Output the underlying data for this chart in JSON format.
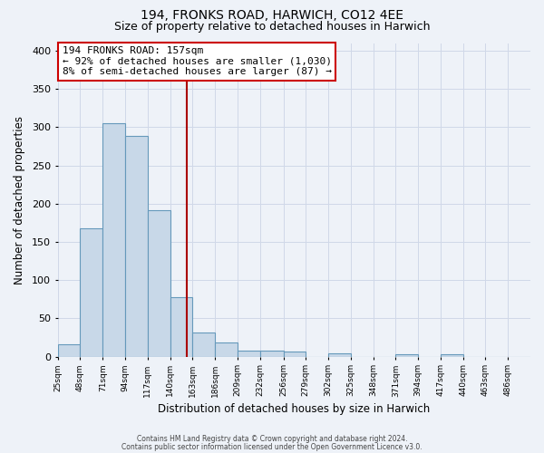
{
  "title": "194, FRONKS ROAD, HARWICH, CO12 4EE",
  "subtitle": "Size of property relative to detached houses in Harwich",
  "xlabel": "Distribution of detached houses by size in Harwich",
  "ylabel": "Number of detached properties",
  "bar_values": [
    16,
    168,
    305,
    288,
    191,
    78,
    32,
    19,
    8,
    8,
    6,
    0,
    4,
    0,
    0,
    3,
    0,
    3,
    0,
    0,
    0
  ],
  "x_tick_labels": [
    "25sqm",
    "48sqm",
    "71sqm",
    "94sqm",
    "117sqm",
    "140sqm",
    "163sqm",
    "186sqm",
    "209sqm",
    "232sqm",
    "256sqm",
    "279sqm",
    "302sqm",
    "325sqm",
    "348sqm",
    "371sqm",
    "394sqm",
    "417sqm",
    "440sqm",
    "463sqm",
    "486sqm"
  ],
  "bin_edges": [
    25,
    48,
    71,
    94,
    117,
    140,
    163,
    186,
    209,
    232,
    256,
    279,
    302,
    325,
    348,
    371,
    394,
    417,
    440,
    463,
    486,
    509
  ],
  "bar_color": "#c8d8e8",
  "bar_edge_color": "#6699bb",
  "property_value": 157,
  "vline_color": "#aa0000",
  "annotation_line1": "194 FRONKS ROAD: 157sqm",
  "annotation_line2": "← 92% of detached houses are smaller (1,030)",
  "annotation_line3": "8% of semi-detached houses are larger (87) →",
  "annotation_box_color": "#ffffff",
  "annotation_box_edge_color": "#cc0000",
  "ylim": [
    0,
    410
  ],
  "yticks": [
    0,
    50,
    100,
    150,
    200,
    250,
    300,
    350,
    400
  ],
  "grid_color": "#d0d8e8",
  "bg_color": "#eef2f8",
  "footer_line1": "Contains HM Land Registry data © Crown copyright and database right 2024.",
  "footer_line2": "Contains public sector information licensed under the Open Government Licence v3.0.",
  "title_fontsize": 10,
  "subtitle_fontsize": 9,
  "figwidth": 6.0,
  "figheight": 5.0
}
